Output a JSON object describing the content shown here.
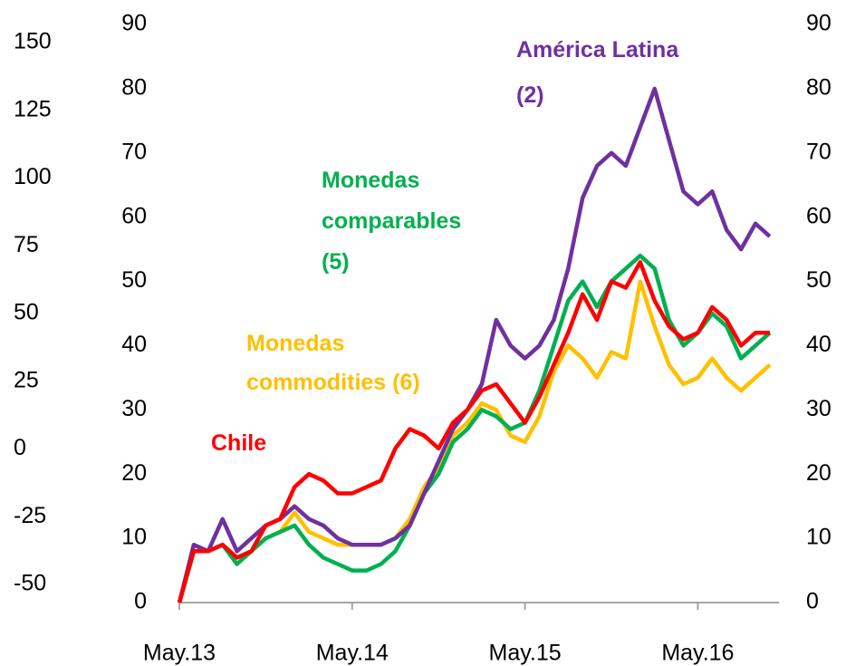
{
  "chart_data": {
    "type": "line",
    "categories": [
      "May.13",
      null,
      null,
      null,
      null,
      null,
      null,
      null,
      null,
      null,
      null,
      null,
      "May.14",
      null,
      null,
      null,
      null,
      null,
      null,
      null,
      null,
      null,
      null,
      null,
      "May.15",
      null,
      null,
      null,
      null,
      null,
      null,
      null,
      null,
      null,
      null,
      null,
      "May.16",
      null,
      null,
      null,
      null,
      null
    ],
    "series": [
      {
        "name": [
          "Monedas",
          "commodities (6)"
        ],
        "color": "#ffc000",
        "values": [
          0,
          8,
          8,
          9,
          7,
          8,
          10,
          11,
          14,
          11,
          10,
          9,
          9,
          9,
          9,
          10,
          13,
          18,
          21,
          26,
          28,
          31,
          30,
          26,
          25,
          29,
          36,
          40,
          38,
          35,
          39,
          38,
          50,
          43,
          37,
          34,
          35,
          38,
          35,
          33,
          35,
          37
        ]
      },
      {
        "name": [
          "Monedas",
          "comparables",
          "(5)"
        ],
        "color": "#00b050",
        "values": [
          0,
          8,
          8,
          9,
          6,
          8,
          10,
          11,
          12,
          9,
          7,
          6,
          5,
          5,
          6,
          8,
          12,
          17,
          20,
          25,
          27,
          30,
          29,
          27,
          28,
          33,
          40,
          47,
          50,
          46,
          50,
          52,
          54,
          52,
          44,
          40,
          42,
          45,
          43,
          38,
          40,
          42
        ]
      },
      {
        "name": [
          "América Latina",
          "(2)"
        ],
        "color": "#7030a0",
        "values": [
          0,
          9,
          8,
          13,
          8,
          10,
          12,
          13,
          15,
          13,
          12,
          10,
          9,
          9,
          9,
          10,
          12,
          17,
          22,
          27,
          30,
          34,
          44,
          40,
          38,
          40,
          44,
          52,
          63,
          68,
          70,
          68,
          74,
          80,
          72,
          64,
          62,
          64,
          58,
          55,
          59,
          57
        ]
      },
      {
        "name": [
          "Chile"
        ],
        "color": "#ff0000",
        "values": [
          0,
          8,
          8,
          9,
          7,
          8,
          12,
          13,
          18,
          20,
          19,
          17,
          17,
          18,
          19,
          24,
          27,
          26,
          24,
          28,
          30,
          33,
          34,
          31,
          28,
          32,
          37,
          42,
          48,
          44,
          50,
          49,
          53,
          47,
          43,
          41,
          42,
          46,
          44,
          40,
          42,
          42
        ]
      }
    ],
    "ylim": [
      0,
      90
    ],
    "yticks": [
      0,
      10,
      20,
      30,
      40,
      50,
      60,
      70,
      80,
      90
    ],
    "y2lim": [
      0,
      90
    ],
    "y2ticks": [
      0,
      10,
      20,
      30,
      40,
      50,
      60,
      70,
      80,
      90
    ],
    "y3lim": [
      -50,
      150
    ],
    "y3ticks": [
      -50,
      -25,
      0,
      25,
      50,
      75,
      100,
      125,
      150
    ]
  }
}
